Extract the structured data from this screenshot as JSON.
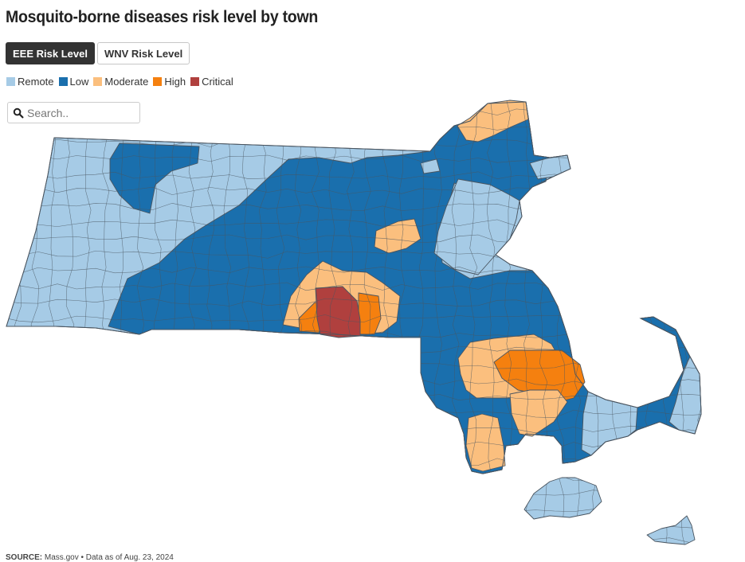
{
  "header": {
    "title": "Mosquito-borne diseases risk level by town"
  },
  "toggle": {
    "eee_label": "EEE Risk Level",
    "wnv_label": "WNV Risk Level",
    "selected": "EEE Risk Level"
  },
  "legend": {
    "items": [
      {
        "label": "Remote",
        "color": "#a6cbe6"
      },
      {
        "label": "Low",
        "color": "#1a6fad"
      },
      {
        "label": "Moderate",
        "color": "#fbbf7e"
      },
      {
        "label": "High",
        "color": "#f5800f"
      },
      {
        "label": "Critical",
        "color": "#b0403e"
      }
    ]
  },
  "search": {
    "placeholder": "Search.."
  },
  "map": {
    "border_color": "#4a5560"
  },
  "footer": {
    "source_label": "SOURCE:",
    "source_text": "Mass.gov • Data as of Aug. 23, 2024"
  }
}
